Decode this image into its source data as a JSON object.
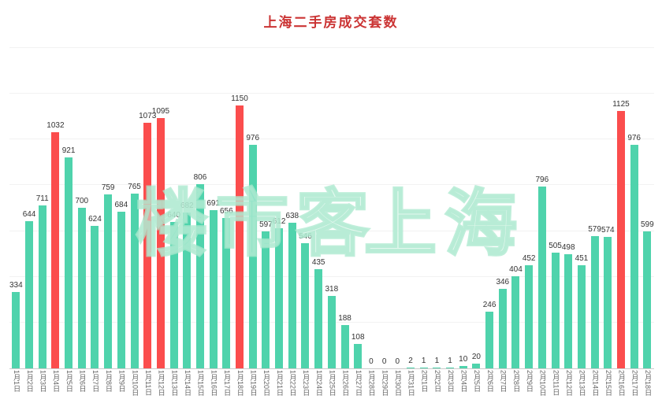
{
  "title": "上海二手房成交套数",
  "watermark": {
    "left": "楼市客",
    "right": "上海"
  },
  "colors": {
    "title": "#cb3434",
    "bar": "#4fd3ac",
    "bar_highlight": "#fb4d4d",
    "axis_line": "#cccccc",
    "value_label": "#333333",
    "x_label": "#666666"
  },
  "chart_data": {
    "type": "bar",
    "title": "上海二手房成交套数",
    "xlabel": "",
    "ylabel": "",
    "ylim": [
      0,
      1400
    ],
    "grid": true,
    "legend": "none",
    "value_labels": true,
    "highlight_threshold": 1000,
    "highlight_color": "#fb4d4d",
    "bar_color": "#4fd3ac",
    "categories": [
      "1月1日",
      "1月2日",
      "1月3日",
      "1月4日",
      "1月5日",
      "1月6日",
      "1月7日",
      "1月8日",
      "1月9日",
      "1月10日",
      "1月11日",
      "1月12日",
      "1月13日",
      "1月14日",
      "1月15日",
      "1月16日",
      "1月17日",
      "1月18日",
      "1月19日",
      "1月20日",
      "1月21日",
      "1月22日",
      "1月23日",
      "1月24日",
      "1月25日",
      "1月26日",
      "1月27日",
      "1月28日",
      "1月29日",
      "1月30日",
      "1月31日",
      "2月1日",
      "2月2日",
      "2月3日",
      "2月4日",
      "2月5日",
      "2月6日",
      "2月7日",
      "2月8日",
      "2月9日",
      "2月10日",
      "2月11日",
      "2月12日",
      "2月13日",
      "2月14日",
      "2月15日",
      "2月16日",
      "2月17日",
      "2月18日"
    ],
    "values": [
      334,
      644,
      711,
      1032,
      921,
      700,
      624,
      759,
      684,
      765,
      1073,
      1095,
      640,
      682,
      806,
      691,
      656,
      1150,
      976,
      597,
      612,
      638,
      546,
      435,
      318,
      188,
      108,
      0,
      0,
      0,
      2,
      1,
      1,
      1,
      10,
      20,
      246,
      346,
      404,
      452,
      796,
      505,
      498,
      451,
      579,
      574,
      1125,
      976,
      599
    ]
  }
}
